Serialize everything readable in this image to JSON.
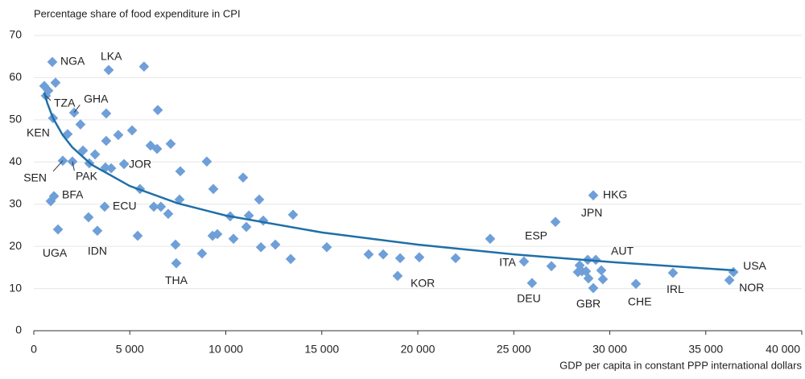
{
  "chart_data": {
    "type": "scatter",
    "ylabel": "Percentage share of food expenditure in CPI",
    "xlabel": "GDP per capita in constant PPP international dollars",
    "xlim": [
      0,
      40000
    ],
    "ylim": [
      0,
      70
    ],
    "xticks": [
      0,
      {
        "value": 5000,
        "label": "5 000"
      },
      {
        "value": 10000,
        "label": "10 000"
      },
      {
        "value": 15000,
        "label": "15 000"
      },
      {
        "value": 20000,
        "label": "20 000"
      },
      {
        "value": 25000,
        "label": "25 000"
      },
      {
        "value": 30000,
        "label": "30 000"
      },
      {
        "value": 35000,
        "label": "35 000"
      },
      {
        "value": 40000,
        "label": "40 000"
      }
    ],
    "yticks": [
      0,
      10,
      20,
      30,
      40,
      50,
      60,
      70
    ],
    "grid": true,
    "series": [
      {
        "color": "#6f9fd8",
        "x": [
          964,
          3900,
          5740,
          545,
          1130,
          629,
          755,
          1000,
          2100,
          2430,
          1760,
          2560,
          3190,
          1510,
          2010,
          2890,
          3770,
          4400,
          3770,
          5120,
          3730,
          4030,
          4700,
          5530,
          6080,
          6420,
          6460,
          7130,
          7630,
          9010,
          9350,
          10900,
          7590,
          6250,
          6620,
          7000,
          3690,
          1050,
          880,
          2850,
          1260,
          3310,
          5410,
          7380,
          7420,
          8760,
          9310,
          9560,
          10230,
          10400,
          11070,
          11200,
          11740,
          11950,
          11830,
          12580,
          13500,
          13380,
          15260,
          17440,
          18200,
          19080,
          18950,
          20080,
          21970,
          23770,
          25530,
          25950,
          27170,
          26960,
          29140,
          28430,
          28550,
          28340,
          28850,
          28760,
          29270,
          28890,
          29140,
          29560,
          29640,
          31360,
          33290,
          36440,
          36230
        ],
        "values": [
          63.7,
          61.8,
          62.6,
          58,
          58.8,
          55.7,
          56.9,
          50.4,
          51.7,
          48.9,
          46.6,
          42.7,
          41.8,
          40.3,
          40.1,
          39.7,
          45,
          46.4,
          51.5,
          47.5,
          38.7,
          38.5,
          39.5,
          33.6,
          43.9,
          43.1,
          52.3,
          44.3,
          37.8,
          40.1,
          33.6,
          36.3,
          31.1,
          29.4,
          29.4,
          27.7,
          29.4,
          31.9,
          30.7,
          26.9,
          24,
          23.7,
          22.5,
          20.4,
          16,
          18.3,
          22.5,
          22.9,
          27.1,
          21.8,
          24.6,
          27.3,
          31.1,
          26.1,
          19.8,
          20.4,
          27.5,
          17,
          19.8,
          18.1,
          18.1,
          17.2,
          13,
          17.4,
          17.2,
          21.8,
          16.4,
          11.3,
          25.8,
          15.3,
          32.1,
          15.5,
          14.1,
          13.9,
          16.8,
          14.1,
          16.8,
          12.4,
          10.1,
          14.3,
          12.2,
          11.1,
          13.7,
          13.9,
          12
        ],
        "labels": [
          "NGA",
          "LKA",
          null,
          null,
          null,
          "TZA",
          null,
          "KEN",
          "GHA",
          null,
          null,
          null,
          null,
          "SEN",
          "PAK",
          null,
          null,
          null,
          null,
          null,
          null,
          null,
          "JOR",
          null,
          null,
          null,
          null,
          null,
          null,
          null,
          null,
          null,
          null,
          null,
          null,
          null,
          "ECU",
          "BFA",
          null,
          null,
          "UGA",
          "IDN",
          null,
          null,
          "THA",
          null,
          null,
          null,
          null,
          null,
          null,
          null,
          null,
          null,
          null,
          null,
          null,
          null,
          null,
          null,
          null,
          null,
          "KOR",
          null,
          null,
          null,
          "ITA",
          "DEU",
          "ESP",
          null,
          "HKG",
          null,
          null,
          null,
          null,
          "JPN",
          null,
          null,
          "GBR",
          "AUT",
          null,
          "CHE",
          "IRL",
          "USA",
          "NOR"
        ]
      },
      {
        "type": "line",
        "color": "#1f6fa8",
        "x": [
          545,
          700,
          1000,
          1500,
          2000,
          3000,
          5000,
          7500,
          10000,
          15000,
          20000,
          25000,
          30000,
          36500
        ],
        "values": [
          56.5,
          54.0,
          50.4,
          46.4,
          43.5,
          39.4,
          34.3,
          30.2,
          27.3,
          23.3,
          20.4,
          18.1,
          16.3,
          14.3
        ]
      }
    ]
  }
}
